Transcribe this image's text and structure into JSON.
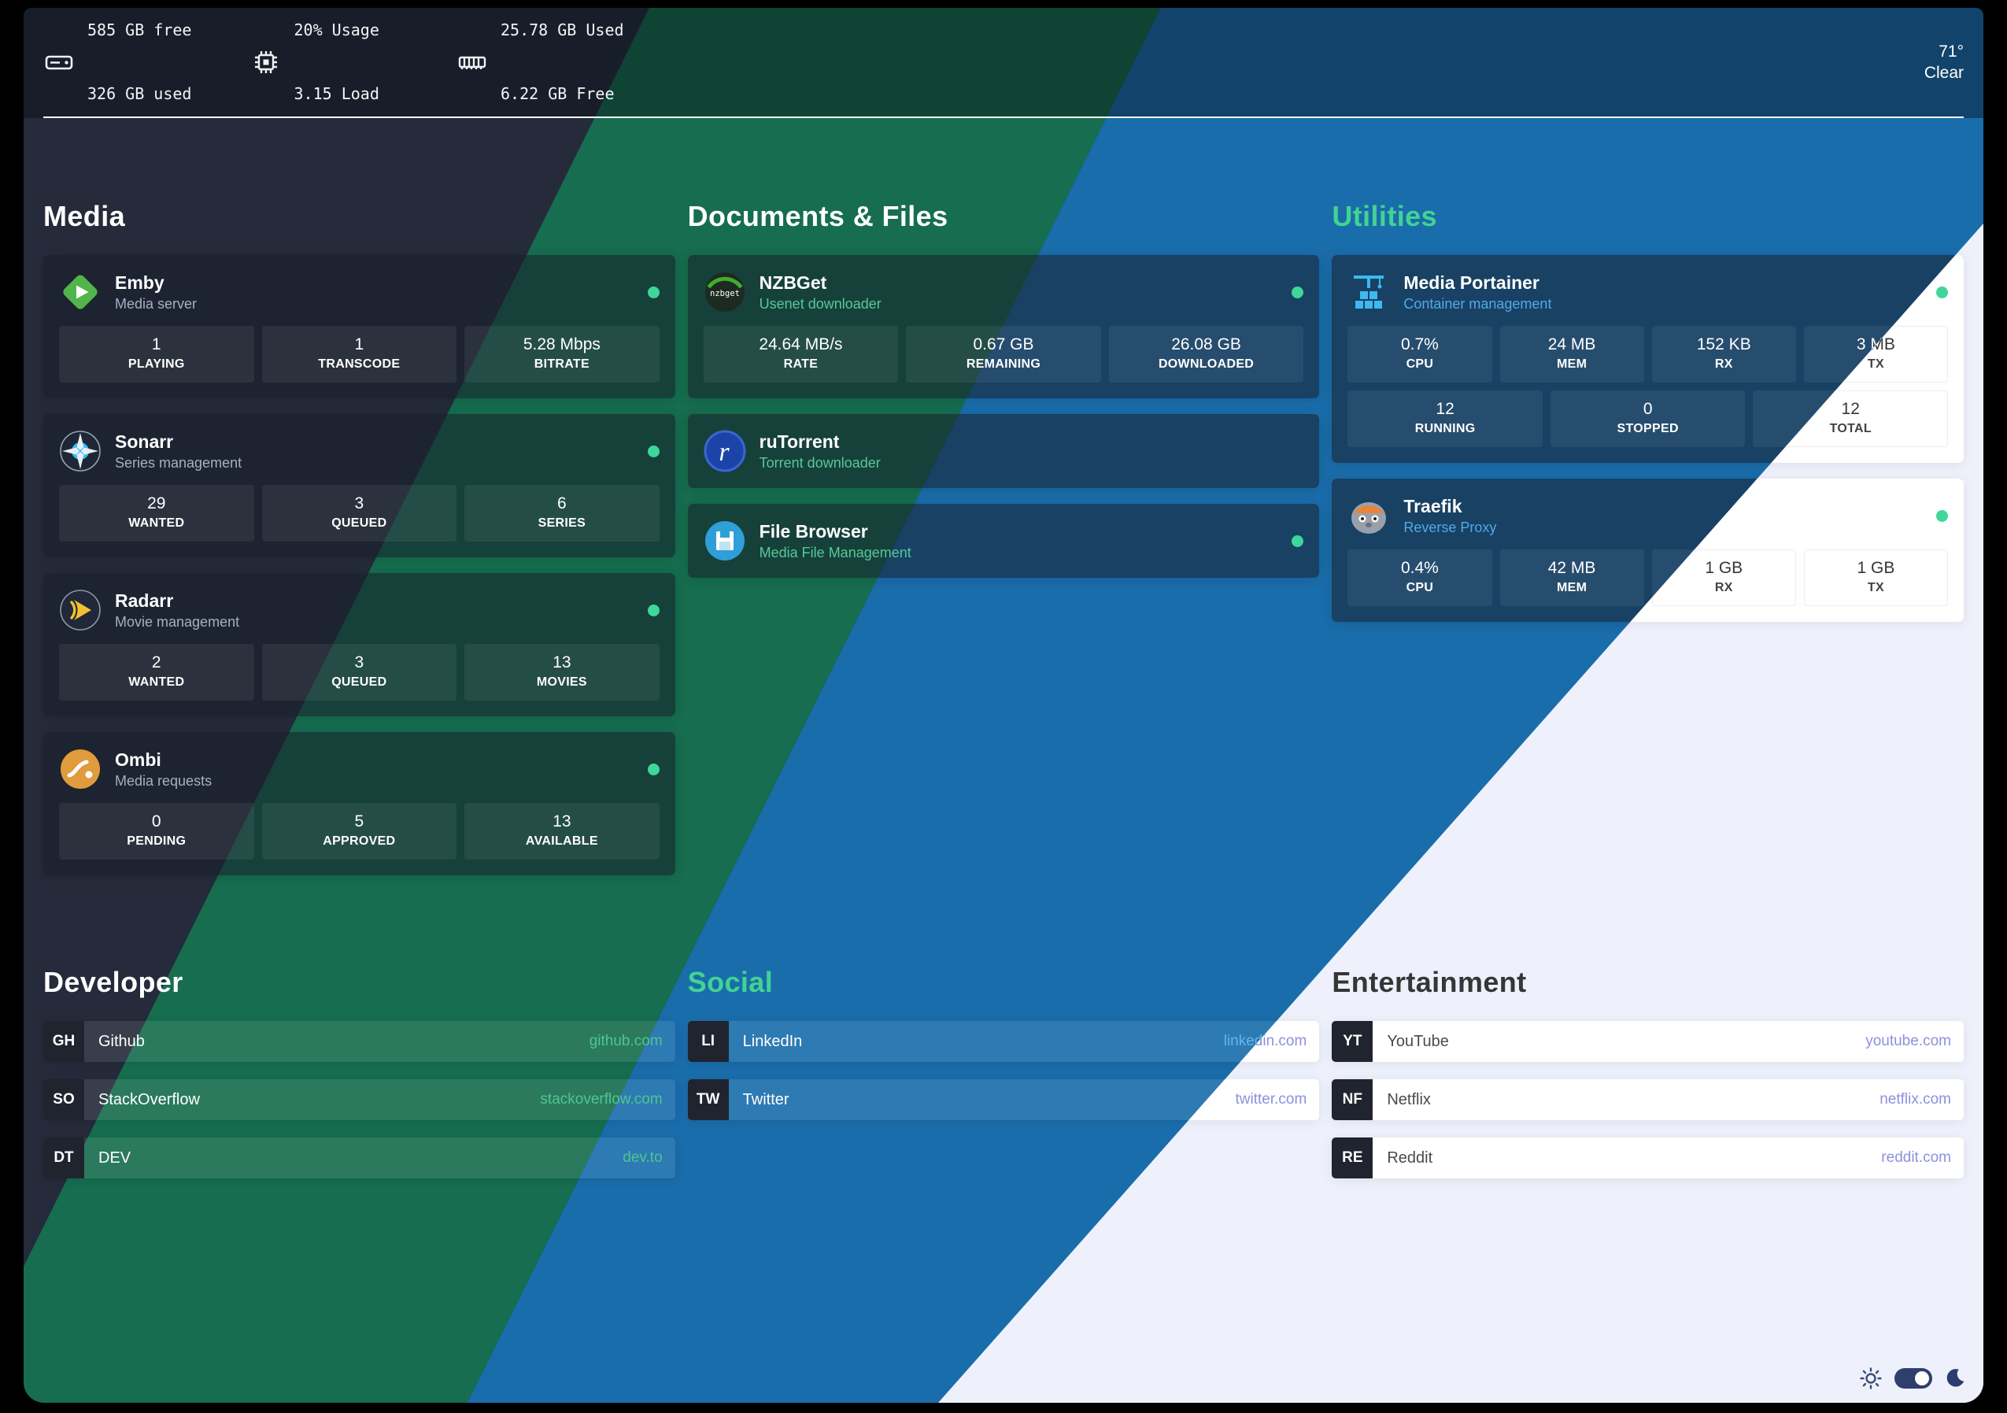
{
  "colors": {
    "band_dark": "#252b3a",
    "band_green": "#166d4f",
    "band_blue": "#1a6dab",
    "band_light": "#eef1fb",
    "status_online": "#3fd69a",
    "accent_teal": "#42d392",
    "accent_blue": "#52a9e8",
    "link_purple_light": "#8e90dd"
  },
  "topbar": {
    "disk": {
      "line1": "585 GB free",
      "line2": "326 GB used"
    },
    "cpu": {
      "line1": "20% Usage",
      "line2": "3.15 Load"
    },
    "memory": {
      "line1": "25.78 GB Used",
      "line2": "6.22 GB Free"
    },
    "weather": {
      "temperature": "71°",
      "condition": "Clear"
    }
  },
  "sections": {
    "media": {
      "title": "Media"
    },
    "documents": {
      "title": "Documents & Files"
    },
    "utilities": {
      "title": "Utilities"
    },
    "developer": {
      "title": "Developer"
    },
    "social": {
      "title": "Social"
    },
    "entertainment": {
      "title": "Entertainment"
    }
  },
  "services": {
    "emby": {
      "name": "Emby",
      "subtitle": "Media server",
      "status": "online",
      "stats": [
        {
          "value": "1",
          "label": "PLAYING"
        },
        {
          "value": "1",
          "label": "TRANSCODE"
        },
        {
          "value": "5.28 Mbps",
          "label": "BITRATE"
        }
      ]
    },
    "sonarr": {
      "name": "Sonarr",
      "subtitle": "Series management",
      "status": "online",
      "stats": [
        {
          "value": "29",
          "label": "WANTED"
        },
        {
          "value": "3",
          "label": "QUEUED"
        },
        {
          "value": "6",
          "label": "SERIES"
        }
      ]
    },
    "radarr": {
      "name": "Radarr",
      "subtitle": "Movie management",
      "status": "online",
      "stats": [
        {
          "value": "2",
          "label": "WANTED"
        },
        {
          "value": "3",
          "label": "QUEUED"
        },
        {
          "value": "13",
          "label": "MOVIES"
        }
      ]
    },
    "ombi": {
      "name": "Ombi",
      "subtitle": "Media requests",
      "status": "online",
      "stats": [
        {
          "value": "0",
          "label": "PENDING"
        },
        {
          "value": "5",
          "label": "APPROVED"
        },
        {
          "value": "13",
          "label": "AVAILABLE"
        }
      ]
    },
    "nzbget": {
      "name": "NZBGet",
      "subtitle": "Usenet downloader",
      "status": "online",
      "stats": [
        {
          "value": "24.64 MB/s",
          "label": "RATE"
        },
        {
          "value": "0.67 GB",
          "label": "REMAINING"
        },
        {
          "value": "26.08 GB",
          "label": "DOWNLOADED"
        }
      ]
    },
    "rutorrent": {
      "name": "ruTorrent",
      "subtitle": "Torrent downloader"
    },
    "filebrowser": {
      "name": "File Browser",
      "subtitle": "Media File Management",
      "status": "online"
    },
    "portainer": {
      "name": "Media Portainer",
      "subtitle": "Container management",
      "status": "online",
      "stats": [
        {
          "value": "0.7%",
          "label": "CPU"
        },
        {
          "value": "24 MB",
          "label": "MEM"
        },
        {
          "value": "152 KB",
          "label": "RX"
        },
        {
          "value": "3 MB",
          "label": "TX"
        }
      ],
      "stats2": [
        {
          "value": "12",
          "label": "RUNNING"
        },
        {
          "value": "0",
          "label": "STOPPED"
        },
        {
          "value": "12",
          "label": "TOTAL"
        }
      ]
    },
    "traefik": {
      "name": "Traefik",
      "subtitle": "Reverse Proxy",
      "status": "online",
      "stats": [
        {
          "value": "0.4%",
          "label": "CPU"
        },
        {
          "value": "42 MB",
          "label": "MEM"
        },
        {
          "value": "1 GB",
          "label": "RX"
        },
        {
          "value": "1 GB",
          "label": "TX"
        }
      ]
    }
  },
  "links": {
    "github": {
      "abbr": "GH",
      "name": "Github",
      "url": "github.com"
    },
    "stackoverflow": {
      "abbr": "SO",
      "name": "StackOverflow",
      "url": "stackoverflow.com"
    },
    "dev": {
      "abbr": "DT",
      "name": "DEV",
      "url": "dev.to"
    },
    "linkedin": {
      "abbr": "LI",
      "name": "LinkedIn",
      "url": "linkedin.com"
    },
    "twitter": {
      "abbr": "TW",
      "name": "Twitter",
      "url": "twitter.com"
    },
    "youtube": {
      "abbr": "YT",
      "name": "YouTube",
      "url": "youtube.com"
    },
    "netflix": {
      "abbr": "NF",
      "name": "Netflix",
      "url": "netflix.com"
    },
    "reddit": {
      "abbr": "RE",
      "name": "Reddit",
      "url": "reddit.com"
    }
  }
}
